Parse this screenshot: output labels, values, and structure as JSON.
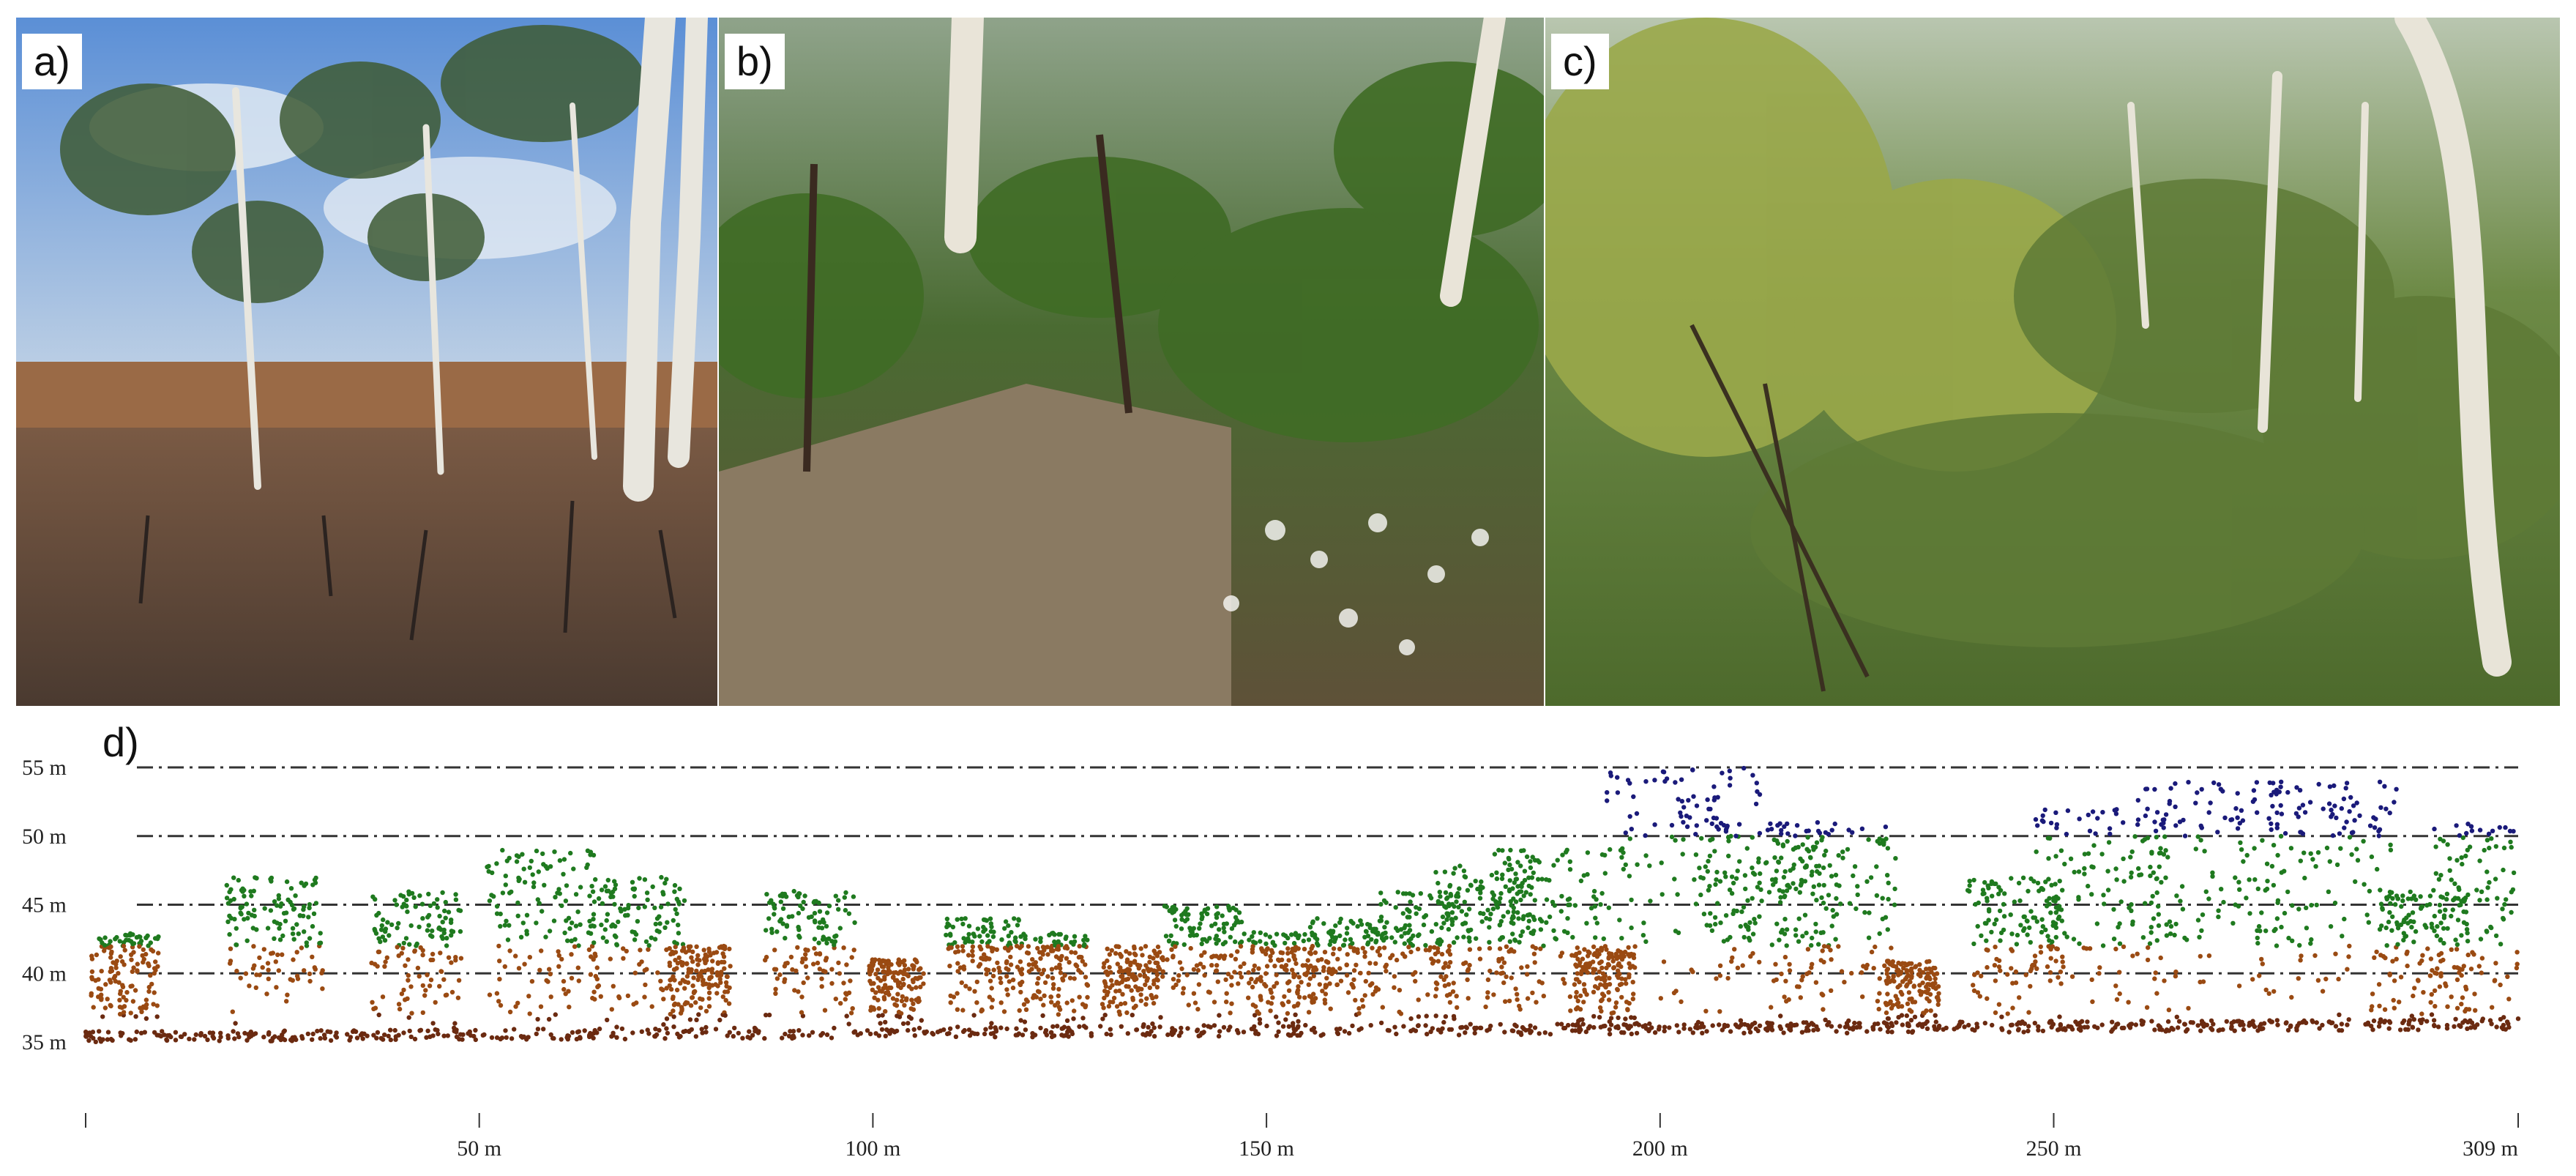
{
  "panels": [
    {
      "id": "a",
      "label": "a)",
      "scene": "burnt-woodland-photo"
    },
    {
      "id": "b",
      "label": "b)",
      "scene": "understorey-regrowth-photo"
    },
    {
      "id": "c",
      "label": "c)",
      "scene": "dense-green-understorey-photo"
    }
  ],
  "profile": {
    "label": "d)",
    "height_ticks": [
      "55 m",
      "50 m",
      "45 m",
      "40 m",
      "35 m"
    ],
    "height_values": [
      55,
      50,
      45,
      40,
      35
    ],
    "distance_ticks": [
      "50 m",
      "100 m",
      "150 m",
      "200 m",
      "250 m",
      "309 m"
    ],
    "distance_values": [
      50,
      100,
      150,
      200,
      250,
      309
    ],
    "x_range": [
      0,
      309
    ],
    "y_range": [
      35,
      55
    ],
    "colors": {
      "ground": "#6b2a10",
      "low": "#9a4a12",
      "mid": "#1f7a1f",
      "high": "#1a1a7a",
      "grid": "#333333"
    }
  }
}
